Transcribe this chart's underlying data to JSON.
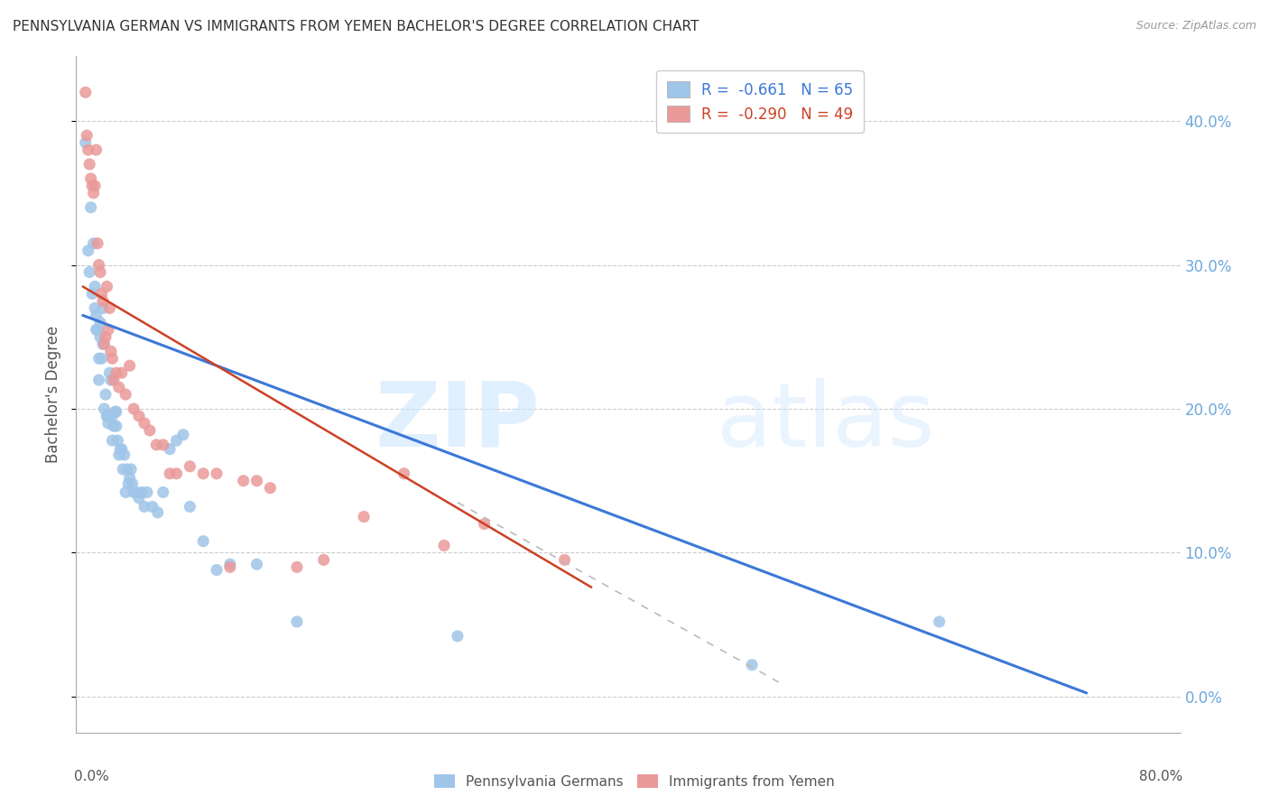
{
  "title": "PENNSYLVANIA GERMAN VS IMMIGRANTS FROM YEMEN BACHELOR'S DEGREE CORRELATION CHART",
  "source": "Source: ZipAtlas.com",
  "ylabel": "Bachelor's Degree",
  "legend_blue": {
    "R": "-0.661",
    "N": "65",
    "label": "Pennsylvania Germans"
  },
  "legend_pink": {
    "R": "-0.290",
    "N": "49",
    "label": "Immigrants from Yemen"
  },
  "blue_color": "#9FC5E8",
  "pink_color": "#EA9999",
  "blue_line_color": "#3C78D8",
  "pink_line_color": "#CC4125",
  "ytick_color": "#6FA8DC",
  "background_color": "#FFFFFF",
  "grid_color": "#CCCCCC",
  "blue_scatter_x": [
    0.002,
    0.004,
    0.005,
    0.006,
    0.007,
    0.008,
    0.009,
    0.009,
    0.01,
    0.01,
    0.011,
    0.012,
    0.012,
    0.013,
    0.013,
    0.014,
    0.015,
    0.015,
    0.016,
    0.017,
    0.018,
    0.018,
    0.019,
    0.02,
    0.02,
    0.021,
    0.022,
    0.022,
    0.023,
    0.024,
    0.025,
    0.025,
    0.026,
    0.027,
    0.028,
    0.029,
    0.03,
    0.031,
    0.032,
    0.033,
    0.034,
    0.035,
    0.036,
    0.037,
    0.038,
    0.04,
    0.042,
    0.044,
    0.046,
    0.048,
    0.052,
    0.056,
    0.06,
    0.065,
    0.07,
    0.075,
    0.08,
    0.09,
    0.1,
    0.11,
    0.13,
    0.16,
    0.28,
    0.5,
    0.64
  ],
  "blue_scatter_y": [
    0.385,
    0.31,
    0.295,
    0.34,
    0.28,
    0.315,
    0.27,
    0.285,
    0.265,
    0.255,
    0.255,
    0.22,
    0.235,
    0.26,
    0.25,
    0.235,
    0.27,
    0.245,
    0.2,
    0.21,
    0.195,
    0.195,
    0.19,
    0.225,
    0.195,
    0.22,
    0.195,
    0.178,
    0.188,
    0.198,
    0.188,
    0.198,
    0.178,
    0.168,
    0.172,
    0.172,
    0.158,
    0.168,
    0.142,
    0.158,
    0.148,
    0.152,
    0.158,
    0.148,
    0.142,
    0.142,
    0.138,
    0.142,
    0.132,
    0.142,
    0.132,
    0.128,
    0.142,
    0.172,
    0.178,
    0.182,
    0.132,
    0.108,
    0.088,
    0.092,
    0.092,
    0.052,
    0.042,
    0.022,
    0.052
  ],
  "pink_scatter_x": [
    0.002,
    0.003,
    0.004,
    0.005,
    0.006,
    0.007,
    0.008,
    0.009,
    0.01,
    0.011,
    0.012,
    0.013,
    0.014,
    0.015,
    0.016,
    0.017,
    0.018,
    0.019,
    0.02,
    0.021,
    0.022,
    0.023,
    0.025,
    0.027,
    0.029,
    0.032,
    0.035,
    0.038,
    0.042,
    0.046,
    0.05,
    0.055,
    0.06,
    0.065,
    0.07,
    0.08,
    0.09,
    0.1,
    0.11,
    0.12,
    0.13,
    0.14,
    0.16,
    0.18,
    0.21,
    0.24,
    0.27,
    0.3,
    0.36
  ],
  "pink_scatter_y": [
    0.42,
    0.39,
    0.38,
    0.37,
    0.36,
    0.355,
    0.35,
    0.355,
    0.38,
    0.315,
    0.3,
    0.295,
    0.28,
    0.275,
    0.245,
    0.25,
    0.285,
    0.255,
    0.27,
    0.24,
    0.235,
    0.22,
    0.225,
    0.215,
    0.225,
    0.21,
    0.23,
    0.2,
    0.195,
    0.19,
    0.185,
    0.175,
    0.175,
    0.155,
    0.155,
    0.16,
    0.155,
    0.155,
    0.09,
    0.15,
    0.15,
    0.145,
    0.09,
    0.095,
    0.125,
    0.155,
    0.105,
    0.12,
    0.095
  ],
  "xlim": [
    -0.005,
    0.82
  ],
  "ylim": [
    -0.025,
    0.445
  ],
  "yticks": [
    0.0,
    0.1,
    0.2,
    0.3,
    0.4
  ],
  "blue_trend_x": [
    0.0,
    0.75
  ],
  "blue_trend_y_intercept": 0.265,
  "blue_trend_slope": -0.35,
  "pink_trend_x": [
    0.0,
    0.38
  ],
  "pink_trend_y_intercept": 0.285,
  "pink_trend_slope": -0.55,
  "dashed_line_x": [
    0.28,
    0.52
  ],
  "dashed_line_y": [
    0.135,
    0.01
  ]
}
